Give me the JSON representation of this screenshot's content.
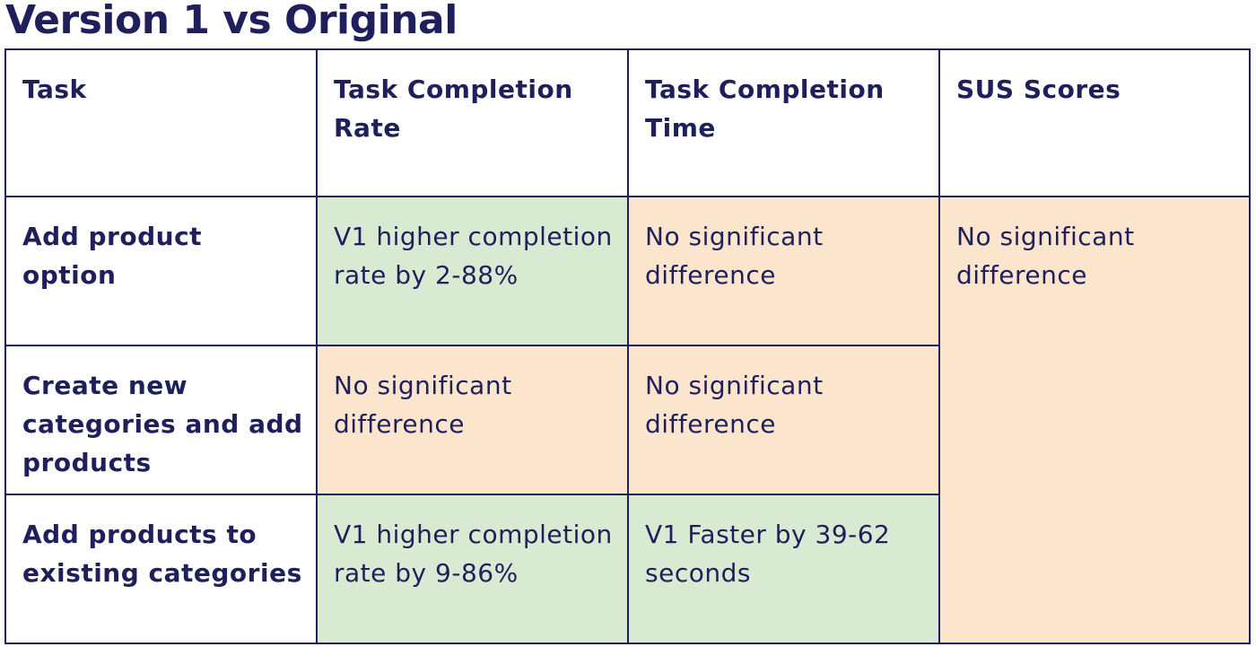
{
  "title": "Version 1 vs Original",
  "colors": {
    "text": "#1f1f5c",
    "border": "#1f1f5c",
    "better": "#d9ead3",
    "neutral": "#fbe5cd"
  },
  "table": {
    "headers": [
      "Task",
      "Task Completion Rate",
      "Task Completion Time",
      "SUS Scores"
    ],
    "rows": [
      {
        "task": "Add product option",
        "completion_rate": "V1 higher completion rate by 2-88%",
        "completion_time": "No significant difference"
      },
      {
        "task": "Create new categories and add products",
        "completion_rate": "No significant difference",
        "completion_time": "No significant difference"
      },
      {
        "task": "Add products to existing categories",
        "completion_rate": "V1 higher completion rate by 9-86%",
        "completion_time": "V1 Faster by 39-62 seconds"
      }
    ],
    "sus_scores": "No significant difference"
  }
}
